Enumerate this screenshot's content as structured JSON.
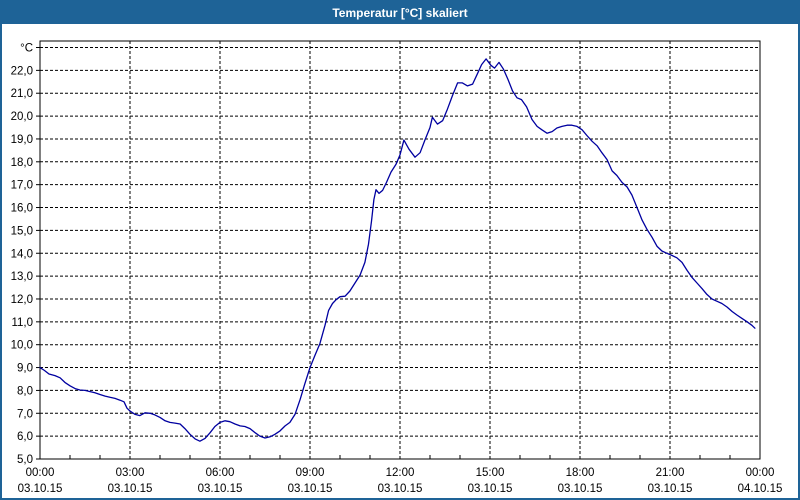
{
  "window": {
    "title": "Temperatur [°C] skaliert"
  },
  "colors": {
    "titlebar_bg": "#1e6397",
    "window_border": "#1e6397",
    "plot_background": "#ffffff",
    "grid": "#000000",
    "axis_text": "#000000",
    "series_line": "#0000a0"
  },
  "chart_data": {
    "type": "line",
    "title": "Temperatur [°C] skaliert",
    "grid": "dashed",
    "y_axis": {
      "unit_label": "°C",
      "min": 5.0,
      "max": 23.0,
      "tick_step": 1.0,
      "tick_values": [
        5,
        6,
        7,
        8,
        9,
        10,
        11,
        12,
        13,
        14,
        15,
        16,
        17,
        18,
        19,
        20,
        21,
        22
      ],
      "tick_labels": [
        "5,0",
        "6,0",
        "7,0",
        "8,0",
        "9,0",
        "10,0",
        "11,0",
        "12,0",
        "13,0",
        "14,0",
        "15,0",
        "16,0",
        "17,0",
        "18,0",
        "19,0",
        "20,0",
        "21,0",
        "22,0"
      ]
    },
    "x_axis": {
      "range_hours": [
        0,
        24
      ],
      "major_tick_interval_hours": 3,
      "minor_tick_interval_hours": 1,
      "ticks": [
        {
          "time": "00:00",
          "date": "03.10.15"
        },
        {
          "time": "03:00",
          "date": "03.10.15"
        },
        {
          "time": "06:00",
          "date": "03.10.15"
        },
        {
          "time": "09:00",
          "date": "03.10.15"
        },
        {
          "time": "12:00",
          "date": "03.10.15"
        },
        {
          "time": "15:00",
          "date": "03.10.15"
        },
        {
          "time": "18:00",
          "date": "03.10.15"
        },
        {
          "time": "21:00",
          "date": "03.10.15"
        },
        {
          "time": "00:00",
          "date": "04.10.15"
        }
      ]
    },
    "series": [
      {
        "name": "Temperatur",
        "color": "#0000a0",
        "points": [
          [
            0.0,
            9.0
          ],
          [
            0.15,
            8.87
          ],
          [
            0.3,
            8.72
          ],
          [
            0.5,
            8.65
          ],
          [
            0.67,
            8.55
          ],
          [
            0.83,
            8.35
          ],
          [
            1.0,
            8.2
          ],
          [
            1.17,
            8.08
          ],
          [
            1.33,
            8.02
          ],
          [
            1.5,
            8.0
          ],
          [
            1.67,
            7.95
          ],
          [
            1.83,
            7.9
          ],
          [
            2.0,
            7.82
          ],
          [
            2.17,
            7.75
          ],
          [
            2.33,
            7.7
          ],
          [
            2.5,
            7.65
          ],
          [
            2.67,
            7.57
          ],
          [
            2.8,
            7.5
          ],
          [
            2.9,
            7.22
          ],
          [
            3.0,
            7.1
          ],
          [
            3.17,
            6.95
          ],
          [
            3.33,
            6.9
          ],
          [
            3.5,
            7.02
          ],
          [
            3.67,
            7.0
          ],
          [
            3.83,
            6.93
          ],
          [
            4.0,
            6.82
          ],
          [
            4.17,
            6.67
          ],
          [
            4.33,
            6.6
          ],
          [
            4.5,
            6.57
          ],
          [
            4.67,
            6.53
          ],
          [
            4.83,
            6.33
          ],
          [
            5.0,
            6.08
          ],
          [
            5.17,
            5.88
          ],
          [
            5.33,
            5.78
          ],
          [
            5.5,
            5.9
          ],
          [
            5.67,
            6.15
          ],
          [
            5.83,
            6.42
          ],
          [
            6.0,
            6.6
          ],
          [
            6.17,
            6.67
          ],
          [
            6.33,
            6.63
          ],
          [
            6.5,
            6.53
          ],
          [
            6.67,
            6.45
          ],
          [
            6.83,
            6.42
          ],
          [
            7.0,
            6.33
          ],
          [
            7.17,
            6.15
          ],
          [
            7.33,
            6.0
          ],
          [
            7.5,
            5.92
          ],
          [
            7.67,
            5.97
          ],
          [
            7.83,
            6.08
          ],
          [
            8.0,
            6.23
          ],
          [
            8.17,
            6.45
          ],
          [
            8.33,
            6.6
          ],
          [
            8.5,
            6.95
          ],
          [
            8.67,
            7.6
          ],
          [
            8.83,
            8.3
          ],
          [
            9.0,
            9.0
          ],
          [
            9.17,
            9.55
          ],
          [
            9.33,
            10.05
          ],
          [
            9.5,
            10.85
          ],
          [
            9.62,
            11.5
          ],
          [
            9.75,
            11.8
          ],
          [
            9.87,
            11.97
          ],
          [
            10.0,
            12.1
          ],
          [
            10.17,
            12.12
          ],
          [
            10.33,
            12.35
          ],
          [
            10.5,
            12.7
          ],
          [
            10.67,
            13.05
          ],
          [
            10.83,
            13.6
          ],
          [
            10.95,
            14.4
          ],
          [
            11.05,
            15.4
          ],
          [
            11.13,
            16.35
          ],
          [
            11.2,
            16.78
          ],
          [
            11.3,
            16.62
          ],
          [
            11.42,
            16.75
          ],
          [
            11.55,
            17.1
          ],
          [
            11.7,
            17.55
          ],
          [
            11.87,
            17.9
          ],
          [
            12.0,
            18.3
          ],
          [
            12.13,
            18.95
          ],
          [
            12.3,
            18.55
          ],
          [
            12.5,
            18.2
          ],
          [
            12.67,
            18.4
          ],
          [
            12.83,
            18.95
          ],
          [
            13.0,
            19.5
          ],
          [
            13.08,
            19.95
          ],
          [
            13.25,
            19.65
          ],
          [
            13.42,
            19.8
          ],
          [
            13.58,
            20.3
          ],
          [
            13.75,
            20.9
          ],
          [
            13.92,
            21.45
          ],
          [
            14.08,
            21.45
          ],
          [
            14.25,
            21.32
          ],
          [
            14.42,
            21.4
          ],
          [
            14.58,
            21.85
          ],
          [
            14.72,
            22.25
          ],
          [
            14.87,
            22.5
          ],
          [
            15.03,
            22.22
          ],
          [
            15.15,
            22.1
          ],
          [
            15.3,
            22.35
          ],
          [
            15.45,
            22.05
          ],
          [
            15.6,
            21.6
          ],
          [
            15.75,
            21.1
          ],
          [
            15.9,
            20.8
          ],
          [
            16.05,
            20.72
          ],
          [
            16.22,
            20.4
          ],
          [
            16.4,
            19.85
          ],
          [
            16.57,
            19.55
          ],
          [
            16.73,
            19.4
          ],
          [
            16.9,
            19.25
          ],
          [
            17.07,
            19.32
          ],
          [
            17.23,
            19.48
          ],
          [
            17.4,
            19.55
          ],
          [
            17.57,
            19.6
          ],
          [
            17.73,
            19.6
          ],
          [
            17.9,
            19.55
          ],
          [
            18.07,
            19.4
          ],
          [
            18.23,
            19.15
          ],
          [
            18.4,
            18.9
          ],
          [
            18.57,
            18.7
          ],
          [
            18.73,
            18.4
          ],
          [
            18.9,
            18.1
          ],
          [
            19.07,
            17.6
          ],
          [
            19.23,
            17.4
          ],
          [
            19.4,
            17.1
          ],
          [
            19.57,
            16.9
          ],
          [
            19.73,
            16.55
          ],
          [
            19.9,
            16.0
          ],
          [
            20.07,
            15.45
          ],
          [
            20.23,
            15.05
          ],
          [
            20.4,
            14.7
          ],
          [
            20.57,
            14.3
          ],
          [
            20.73,
            14.1
          ],
          [
            20.9,
            14.0
          ],
          [
            21.07,
            13.9
          ],
          [
            21.23,
            13.8
          ],
          [
            21.4,
            13.6
          ],
          [
            21.57,
            13.25
          ],
          [
            21.73,
            12.95
          ],
          [
            21.9,
            12.7
          ],
          [
            22.07,
            12.45
          ],
          [
            22.23,
            12.2
          ],
          [
            22.4,
            12.0
          ],
          [
            22.57,
            11.9
          ],
          [
            22.73,
            11.8
          ],
          [
            22.9,
            11.65
          ],
          [
            23.07,
            11.45
          ],
          [
            23.23,
            11.3
          ],
          [
            23.4,
            11.15
          ],
          [
            23.57,
            11.0
          ],
          [
            23.73,
            10.85
          ],
          [
            23.83,
            10.72
          ]
        ]
      }
    ]
  }
}
